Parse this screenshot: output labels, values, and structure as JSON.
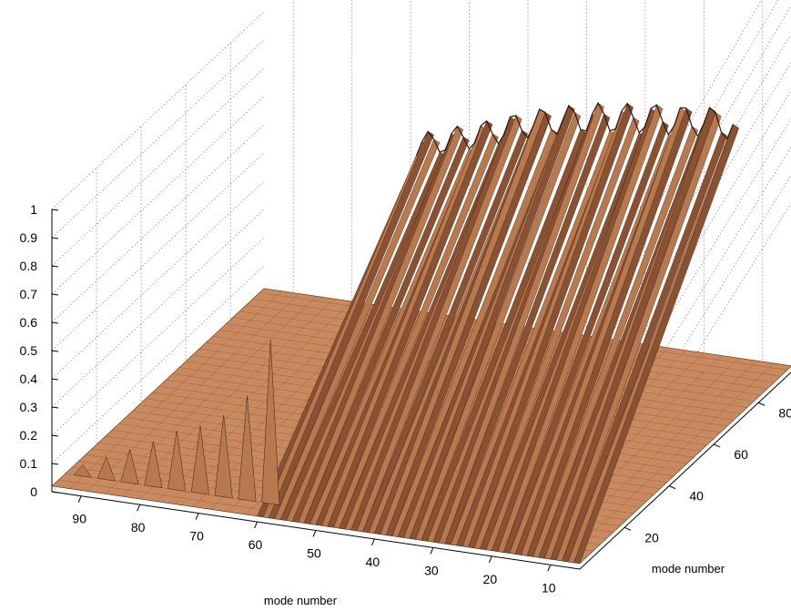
{
  "chart_data": {
    "type": "surface",
    "title": "",
    "z_axis": {
      "label": "",
      "ticks": [
        "0",
        "0.1",
        "0.2",
        "0.3",
        "0.4",
        "0.5",
        "0.6",
        "0.7",
        "0.8",
        "0.9",
        "1"
      ],
      "range": [
        0,
        1
      ]
    },
    "x_axis": {
      "label": "mode number",
      "ticks": [
        "90",
        "80",
        "70",
        "60",
        "50",
        "40",
        "30",
        "20",
        "10"
      ],
      "range": [
        95,
        5
      ]
    },
    "y_axis": {
      "label": "mode number",
      "ticks": [
        "20",
        "40",
        "60",
        "80"
      ],
      "range": [
        0,
        95
      ]
    },
    "grid": true,
    "surface_color": "#c98a60",
    "edge_color": "#3b2010",
    "ridge": {
      "description": "a row of tall peaks across mode numbers along the back edge of the surface",
      "x": [
        90,
        80,
        70,
        60,
        50,
        40,
        30,
        20,
        10
      ],
      "z": [
        0.6,
        0.68,
        0.77,
        0.85,
        0.92,
        1.0,
        1.05,
        1.08,
        1.1
      ]
    },
    "left_edge_peaks": {
      "x": [
        92,
        88,
        84,
        80,
        76,
        72,
        68,
        64,
        60
      ],
      "z": [
        0.06,
        0.1,
        0.14,
        0.18,
        0.23,
        0.26,
        0.31,
        0.39,
        0.6
      ]
    }
  }
}
